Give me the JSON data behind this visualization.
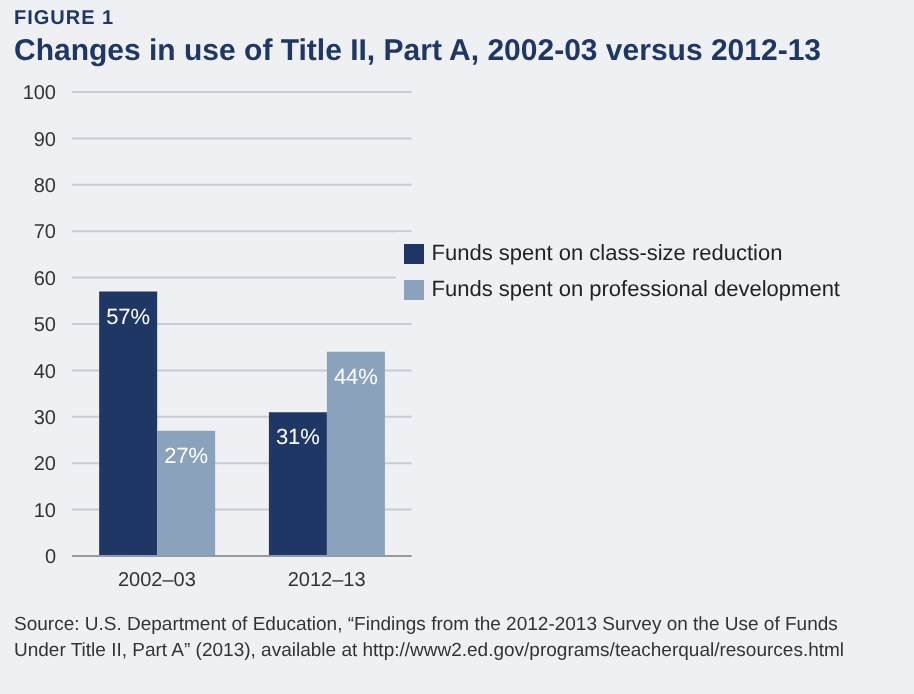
{
  "chart_data": {
    "type": "bar",
    "subtitle": "FIGURE 1",
    "title": "Changes in use of Title II, Part A, 2002-03 versus 2012-13",
    "categories": [
      "2002–03",
      "2012–13"
    ],
    "series": [
      {
        "name": "Funds spent on class-size reduction",
        "color": "#1f3764",
        "values": [
          57,
          31
        ],
        "value_labels": [
          "57%",
          "31%"
        ]
      },
      {
        "name": "Funds spent on professional development",
        "color": "#8aa2bb",
        "values": [
          27,
          44
        ],
        "value_labels": [
          "27%",
          "44%"
        ]
      }
    ],
    "ylim": [
      0,
      100
    ],
    "yticks": [
      0,
      10,
      20,
      30,
      40,
      50,
      60,
      70,
      80,
      90,
      100
    ],
    "grid": "y",
    "legend": "top right",
    "annotations": [
      "Source: U.S. Department of Education, “Findings from the 2012-2013 Survey on the Use of Funds Under Title II, Part A” (2013), available at http://www2.ed.gov/programs/teacherqual/resources.html"
    ]
  }
}
